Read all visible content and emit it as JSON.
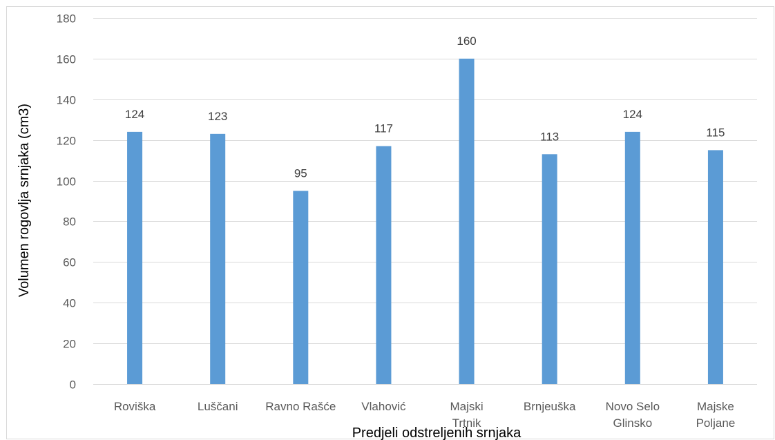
{
  "chart_data": {
    "type": "bar",
    "categories": [
      "Roviška",
      "Luščani",
      "Ravno Rašće",
      "Vlahović",
      "Majski Trtnik",
      "Brnjeuška",
      "Novo Selo Glinsko",
      "Majske Poljane"
    ],
    "category_lines": [
      [
        "Roviška"
      ],
      [
        "Luščani"
      ],
      [
        "Ravno Rašće"
      ],
      [
        "Vlahović"
      ],
      [
        "Majski",
        "Trtnik"
      ],
      [
        "Brnjeuška"
      ],
      [
        "Novo Selo",
        "Glinsko"
      ],
      [
        "Majske",
        "Poljane"
      ]
    ],
    "values": [
      124,
      123,
      95,
      117,
      160,
      113,
      124,
      115
    ],
    "data_labels": [
      "124",
      "123",
      "95",
      "117",
      "160",
      "113",
      "124",
      "115"
    ],
    "title": "",
    "xlabel": "Predjeli odstreljenih srnjaka",
    "ylabel": "Volumen rogovlja srnjaka (cm3)",
    "ylim": [
      0,
      180
    ],
    "y_ticks": [
      "0",
      "20",
      "40",
      "60",
      "80",
      "100",
      "120",
      "140",
      "160",
      "180"
    ],
    "grid": true,
    "legend": "none",
    "colors": {
      "bar": "#5b9bd5",
      "grid": "#d9d9d9",
      "border": "#d9d9d9"
    }
  }
}
